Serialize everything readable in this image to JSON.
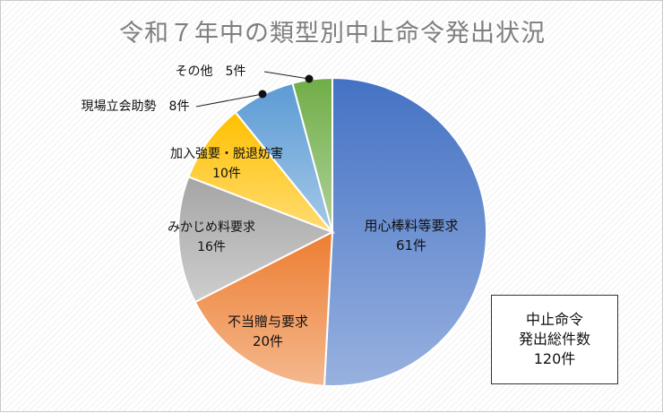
{
  "chart_data": {
    "type": "pie",
    "title": "令和７年中の類型別中止命令発出状況",
    "unit": "件",
    "slices": [
      {
        "label": "用心棒料等要求",
        "value": 61,
        "value_text": "61件",
        "color": "#4472c4"
      },
      {
        "label": "不当贈与要求",
        "value": 20,
        "value_text": "20件",
        "color": "#ed7d31"
      },
      {
        "label": "みかじめ料要求",
        "value": 16,
        "value_text": "16件",
        "color": "#a5a5a5"
      },
      {
        "label": "加入強要・脱退妨害",
        "value": 10,
        "value_text": "10件",
        "color": "#ffc000"
      },
      {
        "label": "現場立会助勢",
        "value": 8,
        "value_text": "8件",
        "color": "#5b9bd5"
      },
      {
        "label": "その他",
        "value": 5,
        "value_text": "5件",
        "color": "#70ad47"
      }
    ],
    "total": {
      "line1": "中止命令",
      "line2": "発出総件数",
      "line3": "120件"
    }
  }
}
